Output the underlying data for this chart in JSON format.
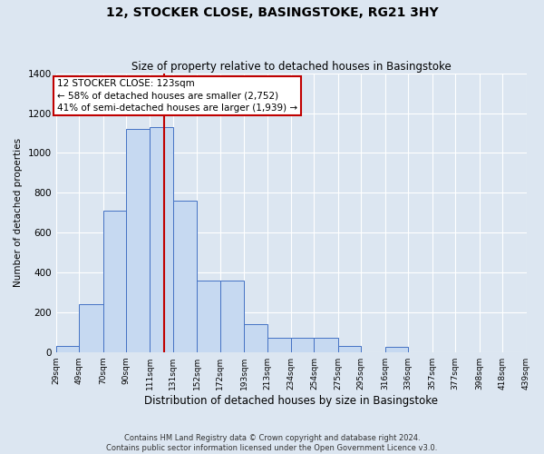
{
  "title": "12, STOCKER CLOSE, BASINGSTOKE, RG21 3HY",
  "subtitle": "Size of property relative to detached houses in Basingstoke",
  "xlabel": "Distribution of detached houses by size in Basingstoke",
  "ylabel": "Number of detached properties",
  "footnote1": "Contains HM Land Registry data © Crown copyright and database right 2024.",
  "footnote2": "Contains public sector information licensed under the Open Government Licence v3.0.",
  "annotation_title": "12 STOCKER CLOSE: 123sqm",
  "annotation_line1": "← 58% of detached houses are smaller (2,752)",
  "annotation_line2": "41% of semi-detached houses are larger (1,939) →",
  "bar_color": "#c6d9f1",
  "bar_edge_color": "#4472c4",
  "vline_color": "#c00000",
  "vline_x": 123,
  "annotation_box_edge": "#c00000",
  "background_color": "#dce6f1",
  "ylim": [
    0,
    1400
  ],
  "yticks": [
    0,
    200,
    400,
    600,
    800,
    1000,
    1200,
    1400
  ],
  "bins": [
    29,
    49,
    70,
    90,
    111,
    131,
    152,
    172,
    193,
    213,
    234,
    254,
    275,
    295,
    316,
    336,
    357,
    377,
    398,
    418,
    439
  ],
  "bin_labels": [
    "29sqm",
    "49sqm",
    "70sqm",
    "90sqm",
    "111sqm",
    "131sqm",
    "152sqm",
    "172sqm",
    "193sqm",
    "213sqm",
    "234sqm",
    "254sqm",
    "275sqm",
    "295sqm",
    "316sqm",
    "336sqm",
    "357sqm",
    "377sqm",
    "398sqm",
    "418sqm",
    "439sqm"
  ],
  "bar_heights": [
    30,
    240,
    710,
    1120,
    1130,
    760,
    360,
    360,
    140,
    70,
    70,
    70,
    30,
    0,
    25,
    0,
    0,
    0,
    0,
    0
  ],
  "title_fontsize": 10,
  "subtitle_fontsize": 8.5,
  "xlabel_fontsize": 8.5,
  "ylabel_fontsize": 7.5,
  "xtick_fontsize": 6.5,
  "ytick_fontsize": 7.5,
  "footnote_fontsize": 6.0,
  "annotation_fontsize": 7.5
}
